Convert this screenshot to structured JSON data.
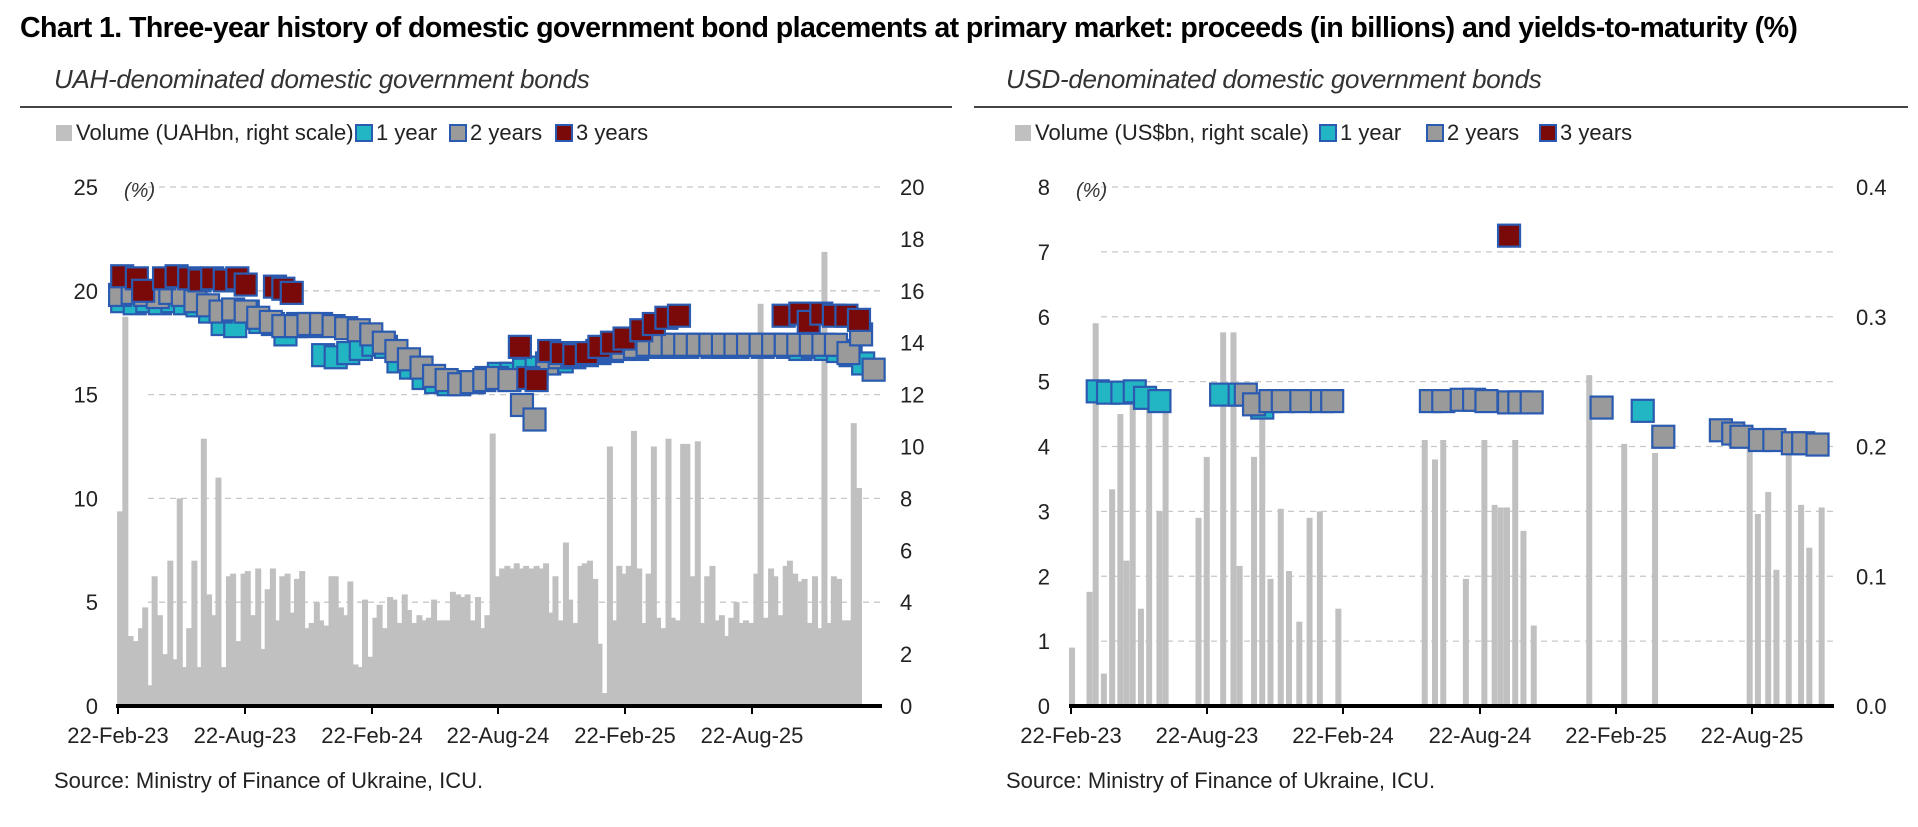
{
  "title": "Chart 1. Three-year history of domestic government bond placements at primary market: proceeds (in billions) and yields-to-maturity (%)",
  "colors": {
    "volume": "#c0c0c0",
    "one_year": "#22b5c4",
    "two_years": "#9a9a9a",
    "three_years": "#7a0a0a",
    "marker_border": "#2a5bb0"
  },
  "panels": [
    {
      "title": "UAH-denominated domestic government bonds",
      "source": "Source: Ministry of Finance of Ukraine, ICU."
    },
    {
      "title": "USD-denominated domestic government bonds",
      "source": "Source: Ministry of Finance of Ukraine, ICU."
    }
  ],
  "chart_data": [
    {
      "type": "bar",
      "title": "UAH-denominated domestic government bonds",
      "y_unit_label": "(%)",
      "legend": [
        "Volume (UAHbn, right scale)",
        "1 year",
        "2 years",
        "3 years"
      ],
      "legend_position": "top-left",
      "grid": true,
      "x_ticks": [
        "22-Feb-23",
        "22-Aug-23",
        "22-Feb-24",
        "22-Aug-24",
        "22-Feb-25",
        "22-Aug-25"
      ],
      "y_left": {
        "range": [
          0,
          25
        ],
        "ticks": [
          "0",
          "5",
          "10",
          "15",
          "20",
          "25"
        ]
      },
      "y_right": {
        "range": [
          0,
          20
        ],
        "ticks": [
          "0",
          "2",
          "4",
          "6",
          "8",
          "10",
          "12",
          "14",
          "16",
          "18",
          "20"
        ]
      },
      "x_range": [
        0,
        36.5
      ],
      "volume": {
        "t": [
          0.1,
          0.35,
          0.6,
          0.85,
          1.1,
          1.3,
          1.55,
          1.75,
          2.0,
          2.25,
          2.5,
          2.7,
          2.95,
          3.2,
          3.4,
          3.65,
          3.9,
          4.1,
          4.35,
          4.6,
          4.8,
          5.05,
          5.3,
          5.5,
          5.75,
          6.0,
          6.2,
          6.45,
          6.7,
          6.9,
          7.15,
          7.4,
          7.6,
          7.85,
          8.1,
          8.3,
          8.55,
          8.8,
          9.0,
          9.25,
          9.5,
          9.7,
          9.95,
          10.2,
          10.4,
          10.65,
          10.9,
          11.1,
          11.35,
          11.6,
          11.8,
          12.05,
          12.3,
          12.5,
          12.75,
          13.0,
          13.2,
          13.45,
          13.7,
          13.9,
          14.15,
          14.4,
          14.6,
          14.85,
          15.1,
          15.3,
          15.55,
          15.8,
          16.0,
          16.25,
          16.5,
          16.7,
          16.95,
          17.2,
          17.4,
          17.65,
          17.9,
          18.1,
          18.35,
          18.6,
          18.8,
          19.05,
          19.3,
          19.5,
          19.75,
          20.0,
          20.2,
          20.45,
          20.7,
          20.9,
          21.15,
          21.4,
          21.6,
          21.85,
          22.1,
          22.3,
          22.55,
          22.8,
          23.0,
          23.25,
          23.5,
          23.7,
          23.95,
          24.2,
          24.4,
          24.65,
          24.9,
          25.1,
          25.35,
          25.6,
          25.8,
          26.05,
          26.3,
          26.5,
          26.75,
          27.0,
          27.2,
          27.45,
          27.7,
          27.9,
          28.15,
          28.4,
          28.6,
          28.85,
          29.1,
          29.3,
          29.55,
          29.8,
          30.0,
          30.25,
          30.5,
          30.7,
          30.95,
          31.2,
          31.4,
          31.65,
          31.9,
          32.1,
          32.35,
          32.6,
          32.8,
          33.05,
          33.3,
          33.5,
          33.75,
          34.0,
          34.2,
          34.45,
          34.7,
          34.9,
          35.15,
          35.4,
          35.6,
          35.85,
          36.1
        ],
        "v": [
          7.5,
          15.0,
          2.7,
          2.5,
          3.0,
          3.8,
          0.8,
          5.0,
          3.5,
          2.0,
          5.6,
          1.8,
          8.0,
          1.5,
          3.0,
          5.6,
          1.5,
          10.3,
          4.3,
          3.5,
          8.8,
          1.5,
          5.0,
          5.1,
          2.5,
          5.1,
          5.2,
          3.5,
          5.3,
          2.2,
          4.5,
          5.3,
          3.3,
          5.0,
          5.1,
          3.6,
          4.9,
          5.2,
          3.0,
          3.2,
          4.0,
          3.3,
          3.1,
          5.0,
          5.0,
          3.8,
          3.5,
          4.8,
          1.6,
          1.5,
          4.1,
          1.9,
          3.4,
          3.9,
          3.0,
          4.2,
          4.1,
          3.2,
          4.3,
          3.7,
          3.2,
          3.5,
          3.3,
          3.4,
          4.1,
          3.3,
          3.3,
          3.3,
          4.4,
          4.3,
          4.2,
          4.3,
          3.3,
          4.2,
          3.0,
          3.5,
          10.5,
          5.0,
          5.3,
          5.4,
          5.3,
          5.5,
          5.3,
          5.4,
          5.3,
          5.4,
          5.3,
          5.5,
          3.6,
          5.0,
          3.3,
          6.3,
          4.1,
          3.2,
          5.4,
          5.5,
          5.6,
          4.9,
          2.4,
          0.5,
          10.0,
          3.3,
          5.4,
          5.1,
          5.4,
          10.6,
          5.3,
          3.2,
          5.1,
          10.0,
          3.4,
          3.0,
          10.3,
          3.4,
          3.3,
          10.1,
          10.1,
          5.0,
          10.2,
          3.2,
          5.0,
          5.4,
          3.3,
          3.5,
          2.7,
          3.4,
          4.0,
          3.2,
          3.3,
          3.2,
          5.1,
          15.5,
          3.4,
          5.3,
          5.0,
          3.5,
          5.4,
          5.6,
          5.1,
          4.8,
          4.9,
          3.2,
          5.0,
          3.0,
          17.5,
          3.2,
          5.0,
          4.9,
          3.3,
          3.3,
          10.9,
          8.4
        ]
      },
      "series": [
        {
          "name": "1 year",
          "t": [
            0.2,
            0.8,
            1.4,
            2.0,
            2.6,
            3.2,
            3.8,
            4.4,
            5.0,
            5.6,
            6.2,
            6.8,
            7.4,
            8.0,
            8.6,
            9.2,
            9.8,
            10.4,
            11.0,
            11.6,
            12.2,
            12.8,
            13.4,
            14.0,
            14.6,
            15.2,
            15.8,
            16.4,
            17.0,
            17.6,
            18.2,
            18.8,
            19.4,
            20.0,
            20.6,
            21.2,
            21.8,
            22.4,
            23.0,
            23.6,
            24.2,
            24.8,
            25.4,
            26.0,
            26.6,
            27.2,
            27.8,
            28.4,
            29.0,
            29.6,
            30.2,
            30.8,
            31.4,
            32.0,
            32.6,
            33.2,
            33.8,
            34.4,
            35.0,
            35.6
          ],
          "y": [
            19.5,
            19.4,
            19.5,
            19.4,
            19.5,
            19.4,
            19.3,
            19.0,
            18.4,
            18.3,
            19.0,
            18.5,
            18.4,
            17.9,
            18.4,
            18.3,
            16.9,
            16.8,
            17.0,
            17.2,
            17.4,
            17.3,
            16.6,
            16.3,
            15.8,
            15.6,
            15.5,
            15.6,
            15.6,
            15.8,
            16.0,
            16.0,
            16.2,
            16.3,
            16.5,
            16.6,
            16.8,
            16.9,
            17.0,
            17.1,
            17.2,
            17.2,
            17.3,
            17.3,
            17.3,
            17.3,
            17.4,
            17.3,
            17.3,
            17.3,
            17.4,
            17.3,
            17.4,
            17.3,
            17.2,
            17.3,
            17.2,
            17.1,
            16.9,
            16.5
          ]
        },
        {
          "name": "2 years",
          "t": [
            0.1,
            0.7,
            1.3,
            1.9,
            2.5,
            3.1,
            3.7,
            4.3,
            4.9,
            5.5,
            6.1,
            6.7,
            7.3,
            7.9,
            8.5,
            9.1,
            9.7,
            10.3,
            10.9,
            11.5,
            12.1,
            12.7,
            13.3,
            13.9,
            14.5,
            15.1,
            15.7,
            16.3,
            16.9,
            17.5,
            18.1,
            18.7,
            19.3,
            19.9,
            20.5,
            21.1,
            21.7,
            22.3,
            22.9,
            23.5,
            24.1,
            24.7,
            25.3,
            25.9,
            26.5,
            27.1,
            27.7,
            28.3,
            28.9,
            29.5,
            30.1,
            30.7,
            31.3,
            31.9,
            32.5,
            33.1,
            33.7,
            34.3,
            34.9,
            35.5,
            36.1
          ],
          "y": [
            19.8,
            19.9,
            19.8,
            19.7,
            19.9,
            19.8,
            19.5,
            19.3,
            19.0,
            19.1,
            19.0,
            18.7,
            18.5,
            18.3,
            18.3,
            18.4,
            18.4,
            18.3,
            18.2,
            18.1,
            17.9,
            17.5,
            17.1,
            16.7,
            16.3,
            15.9,
            15.7,
            15.5,
            15.6,
            15.7,
            15.8,
            15.7,
            14.5,
            13.8,
            16.5,
            16.8,
            16.9,
            17.0,
            17.1,
            17.2,
            17.2,
            17.3,
            17.4,
            17.4,
            17.4,
            17.4,
            17.4,
            17.4,
            17.4,
            17.4,
            17.4,
            17.4,
            17.4,
            17.4,
            17.4,
            17.4,
            17.4,
            17.4,
            17.0,
            17.9,
            16.2
          ]
        },
        {
          "name": "3 years",
          "t": [
            0.2,
            0.9,
            1.2,
            2.2,
            2.8,
            3.4,
            3.9,
            4.5,
            5.1,
            5.7,
            6.1,
            7.5,
            7.9,
            8.3,
            19.2,
            19.6,
            20.0,
            20.6,
            21.2,
            21.8,
            22.4,
            23.0,
            23.6,
            24.2,
            25.0,
            25.6,
            26.2,
            26.8,
            31.8,
            32.6,
            33.0,
            33.6,
            34.2,
            34.8,
            35.4
          ],
          "y": [
            20.7,
            20.6,
            20.0,
            20.6,
            20.7,
            20.6,
            20.5,
            20.6,
            20.5,
            20.6,
            20.3,
            20.2,
            20.1,
            19.9,
            17.3,
            15.8,
            15.7,
            17.1,
            17.0,
            16.9,
            17.0,
            17.3,
            17.5,
            17.7,
            18.1,
            18.4,
            18.7,
            18.8,
            18.8,
            18.9,
            18.5,
            18.9,
            18.8,
            18.8,
            18.6
          ]
        }
      ]
    },
    {
      "type": "bar",
      "title": "USD-denominated domestic government bonds",
      "y_unit_label": "(%)",
      "legend": [
        "Volume (US$bn, right scale)",
        "1 year",
        "2 years",
        "3 years"
      ],
      "legend_position": "top-left",
      "grid": true,
      "x_ticks": [
        "22-Feb-23",
        "22-Aug-23",
        "22-Feb-24",
        "22-Aug-24",
        "22-Feb-25",
        "22-Aug-25"
      ],
      "y_left": {
        "range": [
          0,
          8
        ],
        "ticks": [
          "0",
          "1",
          "2",
          "3",
          "4",
          "5",
          "6",
          "7",
          "8"
        ]
      },
      "y_right": {
        "range": [
          0,
          0.4
        ],
        "ticks": [
          "0.0",
          "0.1",
          "0.2",
          "0.3",
          "0.4"
        ]
      },
      "x_range": [
        0,
        37.1
      ],
      "volume": {
        "t": [
          0.05,
          0.9,
          1.2,
          1.6,
          2.0,
          2.4,
          2.7,
          3.0,
          3.4,
          3.8,
          4.3,
          4.6,
          6.2,
          6.6,
          7.4,
          7.9,
          8.2,
          8.9,
          9.3,
          9.7,
          10.2,
          10.6,
          11.1,
          11.6,
          12.1,
          13.0,
          17.2,
          17.7,
          18.1,
          19.2,
          20.1,
          20.6,
          20.9,
          21.2,
          21.6,
          22.0,
          22.5,
          25.2,
          26.9,
          28.4,
          33.0,
          33.4,
          33.9,
          34.3,
          34.9,
          35.5,
          35.9,
          36.5
        ],
        "v": [
          0.045,
          0.088,
          0.295,
          0.025,
          0.167,
          0.225,
          0.112,
          0.232,
          0.075,
          0.235,
          0.15,
          0.232,
          0.145,
          0.192,
          0.288,
          0.288,
          0.108,
          0.192,
          0.235,
          0.098,
          0.152,
          0.104,
          0.065,
          0.145,
          0.15,
          0.075,
          0.205,
          0.19,
          0.205,
          0.098,
          0.205,
          0.155,
          0.153,
          0.153,
          0.205,
          0.135,
          0.062,
          0.255,
          0.202,
          0.195,
          0.21,
          0.148,
          0.165,
          0.105,
          0.195,
          0.155,
          0.122,
          0.153
        ]
      },
      "series": [
        {
          "name": "1 year",
          "t": [
            1.3,
            1.8,
            2.5,
            3.1,
            3.6,
            4.3,
            7.3,
            8.2,
            9.3,
            27.8
          ],
          "y": [
            4.85,
            4.83,
            4.83,
            4.85,
            4.75,
            4.7,
            4.8,
            4.8,
            4.6,
            4.55
          ]
        },
        {
          "name": "2 years",
          "t": [
            8.5,
            8.9,
            9.7,
            10.3,
            11.2,
            12.2,
            12.7,
            17.5,
            18.1,
            19.0,
            19.6,
            20.2,
            21.3,
            21.8,
            22.4,
            25.8,
            28.8,
            31.6,
            32.2,
            32.6,
            33.5,
            34.2,
            35.1,
            35.6,
            36.3
          ],
          "y": [
            4.8,
            4.65,
            4.7,
            4.7,
            4.7,
            4.7,
            4.7,
            4.7,
            4.7,
            4.72,
            4.72,
            4.7,
            4.68,
            4.68,
            4.68,
            4.6,
            4.15,
            4.25,
            4.2,
            4.15,
            4.1,
            4.1,
            4.05,
            4.05,
            4.03
          ]
        },
        {
          "name": "3 years",
          "t": [
            21.3
          ],
          "y": [
            7.25
          ]
        }
      ]
    }
  ]
}
